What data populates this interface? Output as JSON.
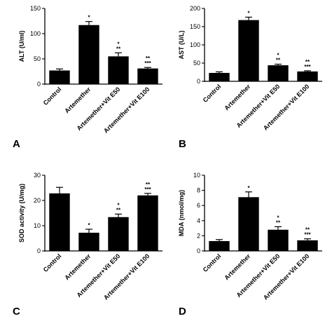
{
  "chart_data": [
    {
      "type": "bar",
      "panel": "A",
      "ylabel": "ALT (U/ml)",
      "ylim": [
        0,
        150
      ],
      "yticks": [
        0,
        50,
        100,
        150
      ],
      "categories": [
        "Control",
        "Artemether",
        "Artemether+Vit E50",
        "Artemether+Vit E100"
      ],
      "values": [
        27,
        117,
        55,
        31
      ],
      "errors": [
        3,
        7,
        7,
        2
      ],
      "significance": [
        [],
        [
          "*"
        ],
        [
          "*",
          "**"
        ],
        [
          "**",
          "***"
        ]
      ],
      "color": "#000000"
    },
    {
      "type": "bar",
      "panel": "B",
      "ylabel": "AST (U/L)",
      "ylim": [
        0,
        200
      ],
      "yticks": [
        0,
        50,
        100,
        150,
        200
      ],
      "categories": [
        "Control",
        "Artemether",
        "Artemether+Vit E50",
        "Artemether+Vit E100"
      ],
      "values": [
        23,
        168,
        44,
        27
      ],
      "errors": [
        3,
        8,
        3,
        2
      ],
      "significance": [
        [],
        [
          "*"
        ],
        [
          "*",
          "**"
        ],
        [
          "**",
          "***"
        ]
      ],
      "color": "#000000"
    },
    {
      "type": "bar",
      "panel": "C",
      "ylabel": "SOD activity (U/mg)",
      "ylim": [
        0,
        30
      ],
      "yticks": [
        0,
        10,
        20,
        30
      ],
      "categories": [
        "Control",
        "Artemether",
        "Artemether+Vit E50",
        "Artemether+Vit E100"
      ],
      "values": [
        22.8,
        7.2,
        13.4,
        22
      ],
      "errors": [
        2.4,
        1.4,
        1.2,
        0.8
      ],
      "significance": [
        [],
        [
          "*"
        ],
        [
          "*",
          "**"
        ],
        [
          "**",
          "***"
        ]
      ],
      "color": "#000000"
    },
    {
      "type": "bar",
      "panel": "D",
      "ylabel": "MDA (nmol/mg)",
      "ylim": [
        0,
        10
      ],
      "yticks": [
        0,
        2,
        4,
        6,
        8,
        10
      ],
      "categories": [
        "Control",
        "Artemether",
        "Artemether+Vit E50",
        "Artemether+Vit E100"
      ],
      "values": [
        1.3,
        7.1,
        2.8,
        1.4
      ],
      "errors": [
        0.2,
        0.7,
        0.4,
        0.2
      ],
      "significance": [
        [],
        [
          "*"
        ],
        [
          "*",
          "**"
        ],
        [
          "**",
          "***"
        ]
      ],
      "color": "#000000"
    }
  ]
}
